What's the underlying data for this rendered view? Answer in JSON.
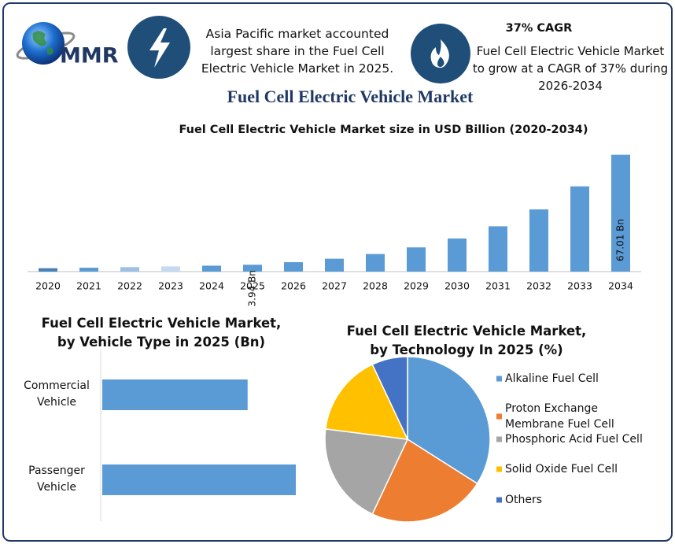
{
  "header": {
    "logo_text": "MMR",
    "fact_1": "Asia Pacific market accounted largest share in the Fuel Cell Electric Vehicle Market in 2025.",
    "cagr_title": "37% CAGR",
    "fact_2": "Fuel Cell Electric Vehicle Market to grow at a CAGR of 37% during 2026-2034",
    "title": "Fuel Cell Electric Vehicle Market"
  },
  "chart_data": [
    {
      "type": "bar",
      "title": "Fuel Cell Electric Vehicle Market size in USD Billion (2020-2034)",
      "categories": [
        "2020",
        "2021",
        "2022",
        "2023",
        "2024",
        "2025",
        "2026",
        "2027",
        "2028",
        "2029",
        "2030",
        "2031",
        "2032",
        "2033",
        "2034"
      ],
      "values": [
        1.95,
        2.24,
        2.58,
        2.97,
        3.41,
        3.94,
        5.4,
        7.4,
        10.1,
        13.9,
        19.0,
        26.0,
        35.7,
        48.9,
        67.01
      ],
      "value_labels": [
        null,
        null,
        null,
        null,
        null,
        "3.94 Bn",
        null,
        null,
        null,
        null,
        null,
        null,
        null,
        null,
        "67.01 Bn"
      ],
      "colors": [
        "#4a7fb8",
        "#5b9bd5",
        "#9dc0e6",
        "#c5d9f1",
        "#5b9bd5",
        "#5b9bd5",
        "#5b9bd5",
        "#5b9bd5",
        "#5b9bd5",
        "#5b9bd5",
        "#5b9bd5",
        "#5b9bd5",
        "#5b9bd5",
        "#5b9bd5",
        "#5b9bd5"
      ],
      "ylim": [
        0,
        70
      ]
    },
    {
      "type": "hbar",
      "title": "Fuel Cell Electric Vehicle Market, by Vehicle Type in 2025 (Bn)",
      "categories": [
        "Commercial Vehicle",
        "Passenger Vehicle"
      ],
      "values": [
        1.69,
        2.25
      ],
      "color": "#5b9bd5",
      "xlim": [
        0,
        2.25
      ]
    },
    {
      "type": "pie",
      "title": "Fuel Cell Electric Vehicle Market, by Technology In 2025 (%)",
      "categories": [
        "Alkaline Fuel Cell",
        "Proton Exchange Membrane Fuel Cell",
        "Phosphoric Acid Fuel Cell",
        "Solid Oxide Fuel Cell",
        "Others"
      ],
      "values": [
        34,
        23,
        20,
        16,
        7
      ],
      "colors": [
        "#5b9bd5",
        "#ed7d31",
        "#a5a5a5",
        "#ffc000",
        "#4472c4"
      ],
      "legend": "right"
    }
  ]
}
